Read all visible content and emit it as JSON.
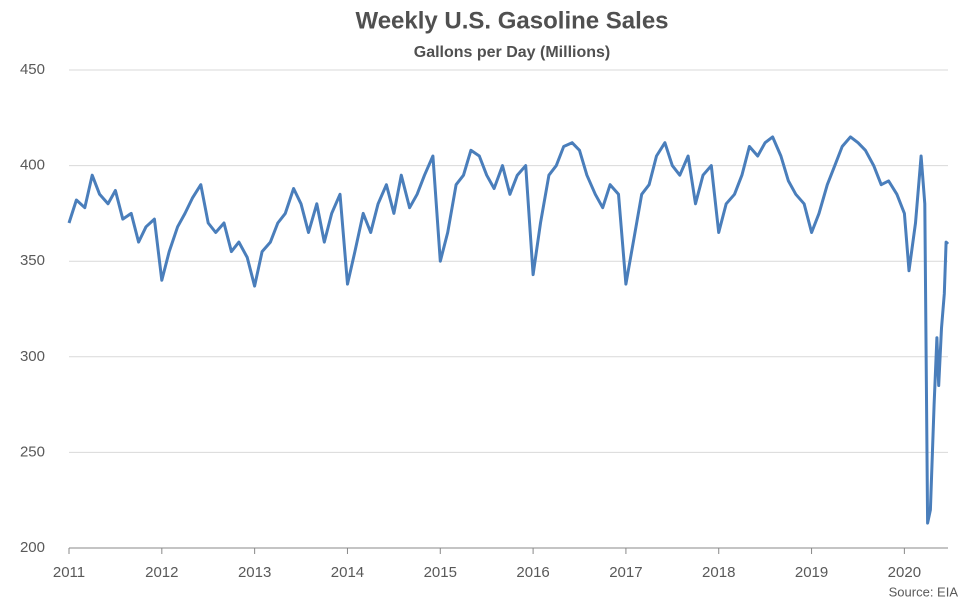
{
  "chart_data": {
    "type": "line",
    "title": "Weekly U.S. Gasoline Sales",
    "subtitle": "Gallons per Day (Millions)",
    "source": "Source: EIA",
    "x": [
      2011,
      2011.08,
      2011.17,
      2011.25,
      2011.33,
      2011.42,
      2011.5,
      2011.58,
      2011.67,
      2011.75,
      2011.83,
      2011.92,
      2012,
      2012.08,
      2012.17,
      2012.25,
      2012.33,
      2012.42,
      2012.5,
      2012.58,
      2012.67,
      2012.75,
      2012.83,
      2012.92,
      2013,
      2013.08,
      2013.17,
      2013.25,
      2013.33,
      2013.42,
      2013.5,
      2013.58,
      2013.67,
      2013.75,
      2013.83,
      2013.92,
      2014,
      2014.08,
      2014.17,
      2014.25,
      2014.33,
      2014.42,
      2014.5,
      2014.58,
      2014.67,
      2014.75,
      2014.83,
      2014.92,
      2015,
      2015.08,
      2015.17,
      2015.25,
      2015.33,
      2015.42,
      2015.5,
      2015.58,
      2015.67,
      2015.75,
      2015.83,
      2015.92,
      2016,
      2016.08,
      2016.17,
      2016.25,
      2016.33,
      2016.42,
      2016.5,
      2016.58,
      2016.67,
      2016.75,
      2016.83,
      2016.92,
      2017,
      2017.08,
      2017.17,
      2017.25,
      2017.33,
      2017.42,
      2017.5,
      2017.58,
      2017.67,
      2017.75,
      2017.83,
      2017.92,
      2018,
      2018.08,
      2018.17,
      2018.25,
      2018.33,
      2018.42,
      2018.5,
      2018.58,
      2018.67,
      2018.75,
      2018.83,
      2018.92,
      2019,
      2019.08,
      2019.17,
      2019.25,
      2019.33,
      2019.42,
      2019.5,
      2019.58,
      2019.67,
      2019.75,
      2019.83,
      2019.92,
      2020,
      2020.05,
      2020.12,
      2020.18,
      2020.22,
      2020.25,
      2020.28,
      2020.32,
      2020.35,
      2020.37,
      2020.4,
      2020.43,
      2020.45,
      2020.47
    ],
    "series": [
      {
        "name": "Gasoline Sales",
        "color": "#4a7ebb",
        "values": [
          370,
          382,
          378,
          395,
          385,
          380,
          387,
          372,
          375,
          360,
          368,
          372,
          340,
          355,
          368,
          375,
          383,
          390,
          370,
          365,
          370,
          355,
          360,
          352,
          337,
          355,
          360,
          370,
          375,
          388,
          380,
          365,
          380,
          360,
          375,
          385,
          338,
          355,
          375,
          365,
          380,
          390,
          375,
          395,
          378,
          385,
          395,
          405,
          350,
          365,
          390,
          395,
          408,
          405,
          395,
          388,
          400,
          385,
          395,
          400,
          343,
          370,
          395,
          400,
          410,
          412,
          408,
          395,
          385,
          378,
          390,
          385,
          338,
          360,
          385,
          390,
          405,
          412,
          400,
          395,
          405,
          380,
          395,
          400,
          365,
          380,
          385,
          395,
          410,
          405,
          412,
          415,
          405,
          392,
          385,
          380,
          365,
          375,
          390,
          400,
          410,
          415,
          412,
          408,
          400,
          390,
          392,
          385,
          375,
          345,
          370,
          405,
          380,
          213,
          220,
          275,
          310,
          285,
          315,
          333,
          360,
          359
        ]
      }
    ],
    "xlim": [
      2011,
      2020.47
    ],
    "xticks": [
      2011,
      2012,
      2013,
      2014,
      2015,
      2016,
      2017,
      2018,
      2019,
      2020
    ],
    "ylim": [
      200,
      450
    ],
    "yticks": [
      200,
      250,
      300,
      350,
      400,
      450
    ],
    "grid": true
  }
}
